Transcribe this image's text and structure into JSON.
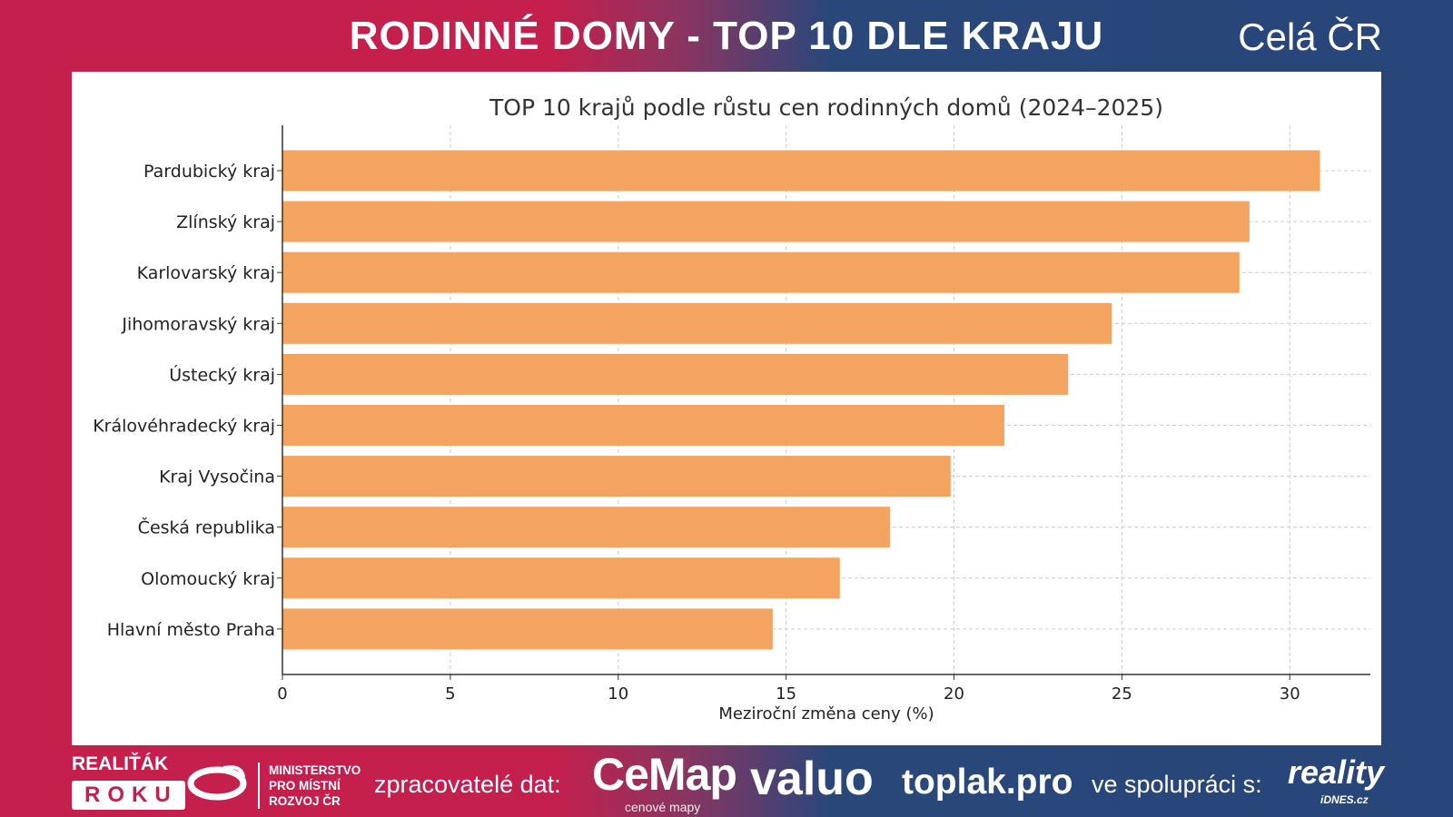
{
  "header": {
    "title": "RODINNÉ DOMY - TOP 10 DLE KRAJU",
    "scope": "Celá ČR"
  },
  "colors": {
    "bar": "#f4a460",
    "left_bg": "#c41f4d",
    "right_bg": "#284679"
  },
  "chart_data": {
    "type": "bar",
    "orientation": "horizontal",
    "title": "TOP 10 krajů podle růstu cen rodinných domů (2024–2025)",
    "xlabel": "Meziroční změna ceny (%)",
    "ylabel": "",
    "categories": [
      "Pardubický kraj",
      "Zlínský kraj",
      "Karlovarský kraj",
      "Jihomoravský kraj",
      "Ústecký kraj",
      "Královéhradecký kraj",
      "Kraj Vysočina",
      "Česká republika",
      "Olomoucký kraj",
      "Hlavní město Praha"
    ],
    "values": [
      30.9,
      28.8,
      28.5,
      24.7,
      23.4,
      21.5,
      19.9,
      18.1,
      16.6,
      14.6
    ],
    "xticks": [
      0,
      5,
      10,
      15,
      20,
      25,
      30
    ],
    "xlim": [
      0,
      32.4
    ],
    "grid": true
  },
  "footer": {
    "realitak": "REALIŤÁK",
    "roku": "ROKU",
    "ministry": [
      "MINISTERSTVO",
      "PRO MÍSTNÍ",
      "ROZVOJ ČR"
    ],
    "processors_label": "zpracovatelé dat:",
    "cemap": "CeMap",
    "cemap_sub": "cenové mapy",
    "valuo": "valuo",
    "toplak": "toplak.pro",
    "cooperation_label": "ve spolupráci s:",
    "reality": "reality",
    "idnes": "iDNES.cz"
  }
}
